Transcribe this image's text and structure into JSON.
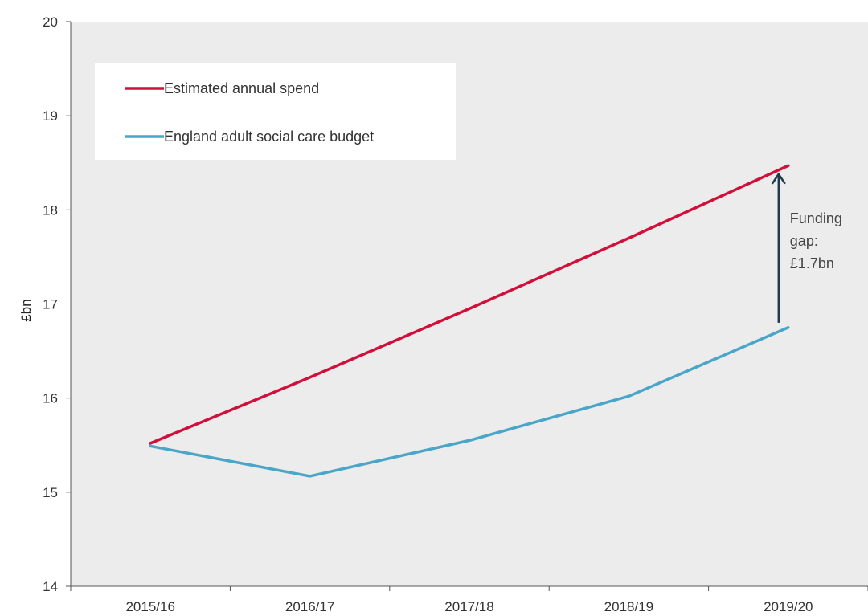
{
  "chart_data": {
    "type": "line",
    "x": [
      "2015/16",
      "2016/17",
      "2017/18",
      "2018/19",
      "2019/20"
    ],
    "series": [
      {
        "name": "Estimated annual spend",
        "color": "#d0103a",
        "values": [
          15.52,
          16.22,
          16.95,
          17.7,
          18.47
        ]
      },
      {
        "name": "England adult social care budget",
        "color": "#4aa6c8",
        "values": [
          15.49,
          15.17,
          15.55,
          16.02,
          16.75
        ]
      }
    ],
    "ylabel": "£bn",
    "xlabel": "",
    "ylim": [
      14,
      20
    ],
    "yticks": [
      14,
      15,
      16,
      17,
      18,
      19,
      20
    ],
    "grid": false,
    "background": "#ececec",
    "legend_position": "top-left",
    "annotation": {
      "lines": [
        "Funding",
        "gap:",
        "£1.7bn"
      ],
      "arrow_color": "#1f3a4d",
      "x": "2019/20",
      "from": 16.8,
      "to": 18.38
    }
  }
}
